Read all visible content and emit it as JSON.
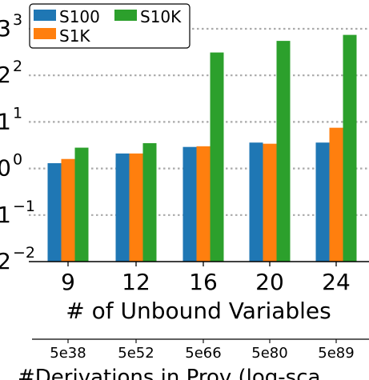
{
  "chart_data": {
    "type": "bar",
    "log_scale_y": true,
    "ylim": [
      0.01,
      1000
    ],
    "y_ticks": [
      {
        "value": 0.01,
        "label": "2",
        "exponent": "−2"
      },
      {
        "value": 0.1,
        "label": "1",
        "exponent": "−1"
      },
      {
        "value": 1,
        "label": "0",
        "exponent": "0"
      },
      {
        "value": 10,
        "label": "1",
        "exponent": "1"
      },
      {
        "value": 100,
        "label": "2",
        "exponent": "2"
      },
      {
        "value": 1000,
        "label": "3",
        "exponent": "3"
      }
    ],
    "grid": "horizontal dotted",
    "categories": [
      "9",
      "12",
      "16",
      "20",
      "24"
    ],
    "xlabel": "# of Unbound Variables",
    "secondary_x": {
      "labels": [
        "5e38",
        "5e52",
        "5e66",
        "5e80",
        "5e89"
      ],
      "label": "#Derivations in Prov (log-sca"
    },
    "series": [
      {
        "name": "S100",
        "color": "#1f77b4",
        "values": [
          1.3,
          2.1,
          2.9,
          3.6,
          3.6
        ]
      },
      {
        "name": "S1K",
        "color": "#ff7f0e",
        "values": [
          1.6,
          2.1,
          3.0,
          3.4,
          7.5
        ]
      },
      {
        "name": "S10K",
        "color": "#2ca02c",
        "values": [
          2.8,
          3.5,
          310,
          550,
          740
        ]
      }
    ],
    "legend": {
      "placement": "top-left",
      "ncol": 2
    }
  }
}
